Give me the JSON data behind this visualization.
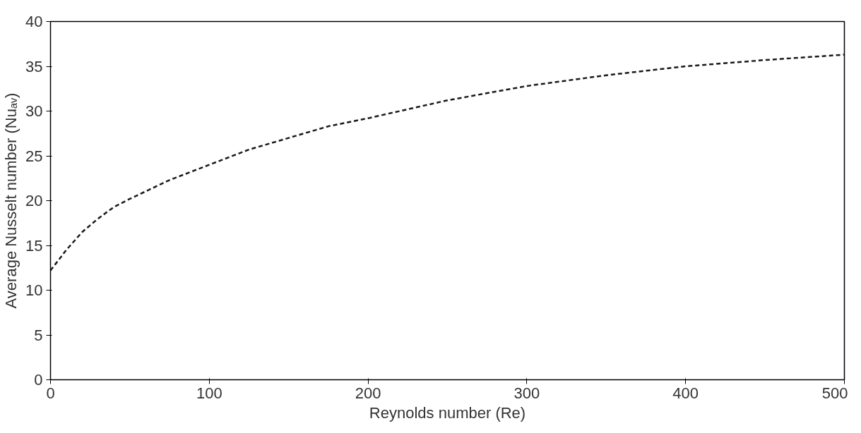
{
  "chart_data": {
    "type": "line",
    "xlabel": "Reynolds number (Re)",
    "ylabel": "Average Nusselt number (Nuₐᵥ)",
    "x": [
      0,
      10,
      20,
      30,
      40,
      50,
      75,
      100,
      125,
      150,
      175,
      200,
      250,
      300,
      350,
      400,
      450,
      500
    ],
    "series": [
      {
        "color": "#1a1a1a",
        "values": [
          12.2,
          14.5,
          16.5,
          18,
          19.3,
          20.2,
          22.3,
          24,
          25.7,
          27,
          28.3,
          29.2,
          31.2,
          32.8,
          34,
          35,
          35.7,
          36.3
        ]
      }
    ],
    "xlim": [
      0,
      500
    ],
    "xticks": [
      0,
      100,
      200,
      300,
      400,
      500
    ],
    "ylim": [
      0,
      40
    ],
    "yticks": [
      0,
      5,
      10,
      15,
      20,
      25,
      30,
      35,
      40
    ],
    "grid": false,
    "line_style": "dashed",
    "marker": "none"
  }
}
